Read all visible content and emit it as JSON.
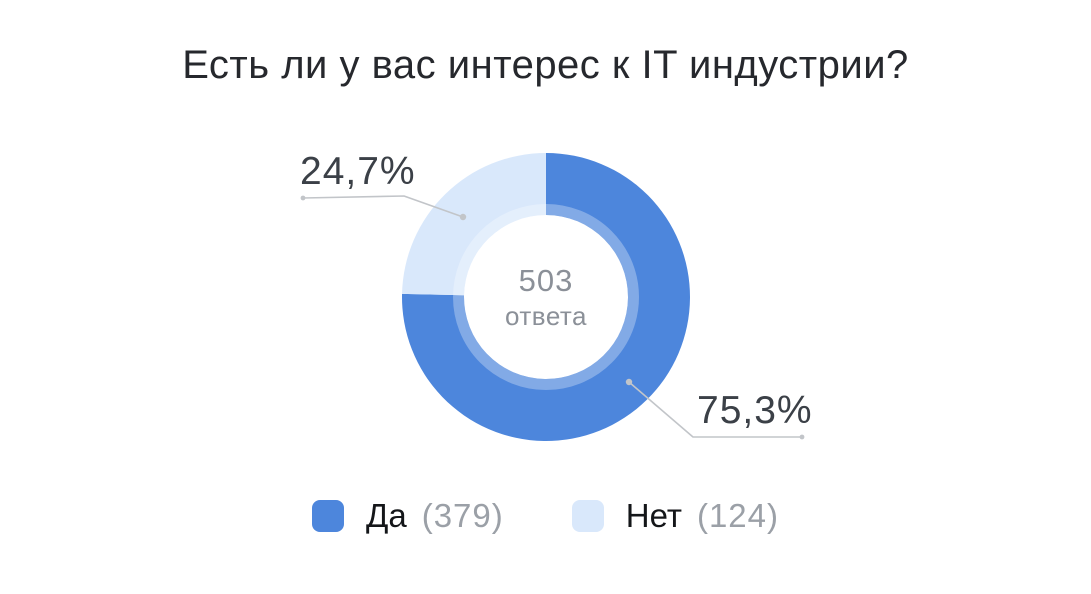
{
  "chart_data": {
    "type": "pie",
    "variant": "donut",
    "title": "Есть ли у вас интерес к IT индустрии?",
    "center": {
      "value": "503",
      "caption": "ответа"
    },
    "slices": [
      {
        "label": "Да",
        "value": 379,
        "count_label": "(379)",
        "percent": 75.3,
        "percent_label": "75,3%",
        "color": "#4d86dc"
      },
      {
        "label": "Нет",
        "value": 124,
        "count_label": "(124)",
        "percent": 24.7,
        "percent_label": "24,7%",
        "color": "#d9e8fb"
      }
    ],
    "start_angle_deg": 0,
    "direction": "clockwise",
    "legend_position": "bottom"
  },
  "colors": {
    "yes_blue": "#4d86dc",
    "no_light_blue": "#d9e8fb",
    "leader_line": "#c2c5c9",
    "title_text": "#26282d",
    "percent_text": "#3b4047",
    "center_text": "#8b9098",
    "legend_label_text": "#141619",
    "legend_count_text": "#9ba0a7",
    "background": "#ffffff"
  }
}
